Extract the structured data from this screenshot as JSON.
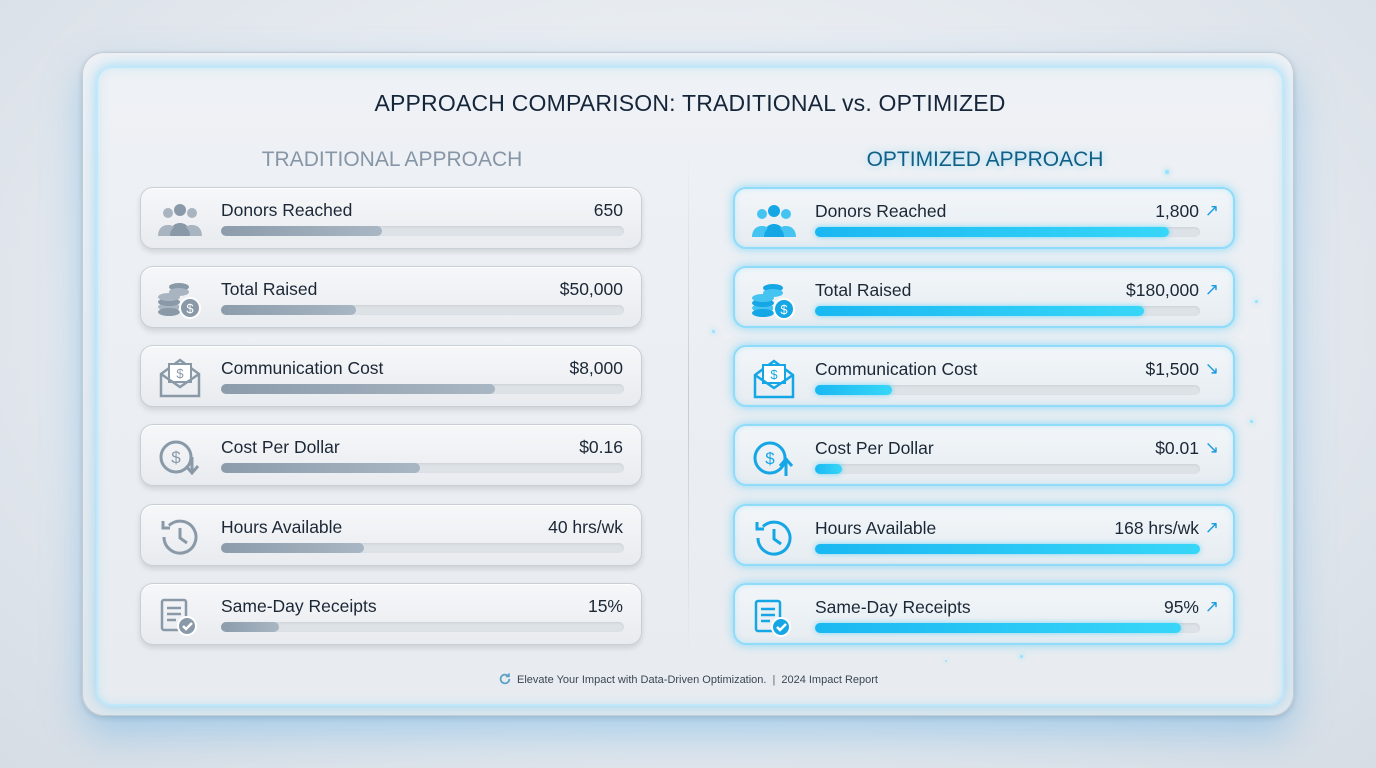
{
  "title": "APPROACH COMPARISON: TRADITIONAL vs. OPTIMIZED",
  "colors": {
    "traditional_bar": "#95a4b3",
    "optimized_bar": "#1ebcf2",
    "accent": "#1a9be0"
  },
  "traditional": {
    "heading": "TRADITIONAL APPROACH",
    "rows": [
      {
        "icon": "people-icon",
        "label": "Donors Reached",
        "value": "650",
        "fill": 0.4
      },
      {
        "icon": "coins-icon",
        "label": "Total Raised",
        "value": "$50,000",
        "fill": 0.335
      },
      {
        "icon": "envelope-dollar-icon",
        "label": "Communication Cost",
        "value": "$8,000",
        "fill": 0.68
      },
      {
        "icon": "dollar-down-icon",
        "label": "Cost Per Dollar",
        "value": "$0.16",
        "fill": 0.495
      },
      {
        "icon": "clock-history-icon",
        "label": "Hours Available",
        "value": "40 hrs/wk",
        "fill": 0.355
      },
      {
        "icon": "receipt-check-icon",
        "label": "Same-Day Receipts",
        "value": "15%",
        "fill": 0.145
      }
    ]
  },
  "optimized": {
    "heading": "OPTIMIZED APPROACH",
    "rows": [
      {
        "icon": "people-icon",
        "label": "Donors Reached",
        "value": "1,800",
        "arrow": "↗",
        "fill": 0.92
      },
      {
        "icon": "coins-icon",
        "label": "Total Raised",
        "value": "$180,000",
        "arrow": "↗",
        "fill": 0.855
      },
      {
        "icon": "envelope-dollar-icon",
        "label": "Communication Cost",
        "value": "$1,500",
        "arrow": "↘",
        "fill": 0.2
      },
      {
        "icon": "dollar-up-icon",
        "label": "Cost Per Dollar",
        "value": "$0.01",
        "arrow": "↘",
        "fill": 0.07
      },
      {
        "icon": "clock-history-icon",
        "label": "Hours Available",
        "value": "168 hrs/wk",
        "arrow": "↗",
        "fill": 1.0
      },
      {
        "icon": "receipt-check-icon",
        "label": "Same-Day Receipts",
        "value": "95%",
        "arrow": "↗",
        "fill": 0.95
      }
    ]
  },
  "footer": {
    "tagline": "Elevate Your Impact with Data-Driven Optimization.",
    "separator": "|",
    "report": "2024 Impact Report"
  },
  "chart_data": {
    "type": "bar",
    "title": "APPROACH COMPARISON: TRADITIONAL vs. OPTIMIZED",
    "categories": [
      "Donors Reached",
      "Total Raised",
      "Communication Cost",
      "Cost Per Dollar",
      "Hours Available",
      "Same-Day Receipts"
    ],
    "series": [
      {
        "name": "TRADITIONAL APPROACH",
        "values": [
          650,
          50000,
          8000,
          0.16,
          40,
          15
        ],
        "labels": [
          "650",
          "$50,000",
          "$8,000",
          "$0.16",
          "40 hrs/wk",
          "15%"
        ]
      },
      {
        "name": "OPTIMIZED APPROACH",
        "values": [
          1800,
          180000,
          1500,
          0.01,
          168,
          95
        ],
        "labels": [
          "1,800",
          "$180,000",
          "$1,500",
          "$0.01",
          "168 hrs/wk",
          "95%"
        ]
      }
    ],
    "orientation": "horizontal",
    "grid": false
  }
}
